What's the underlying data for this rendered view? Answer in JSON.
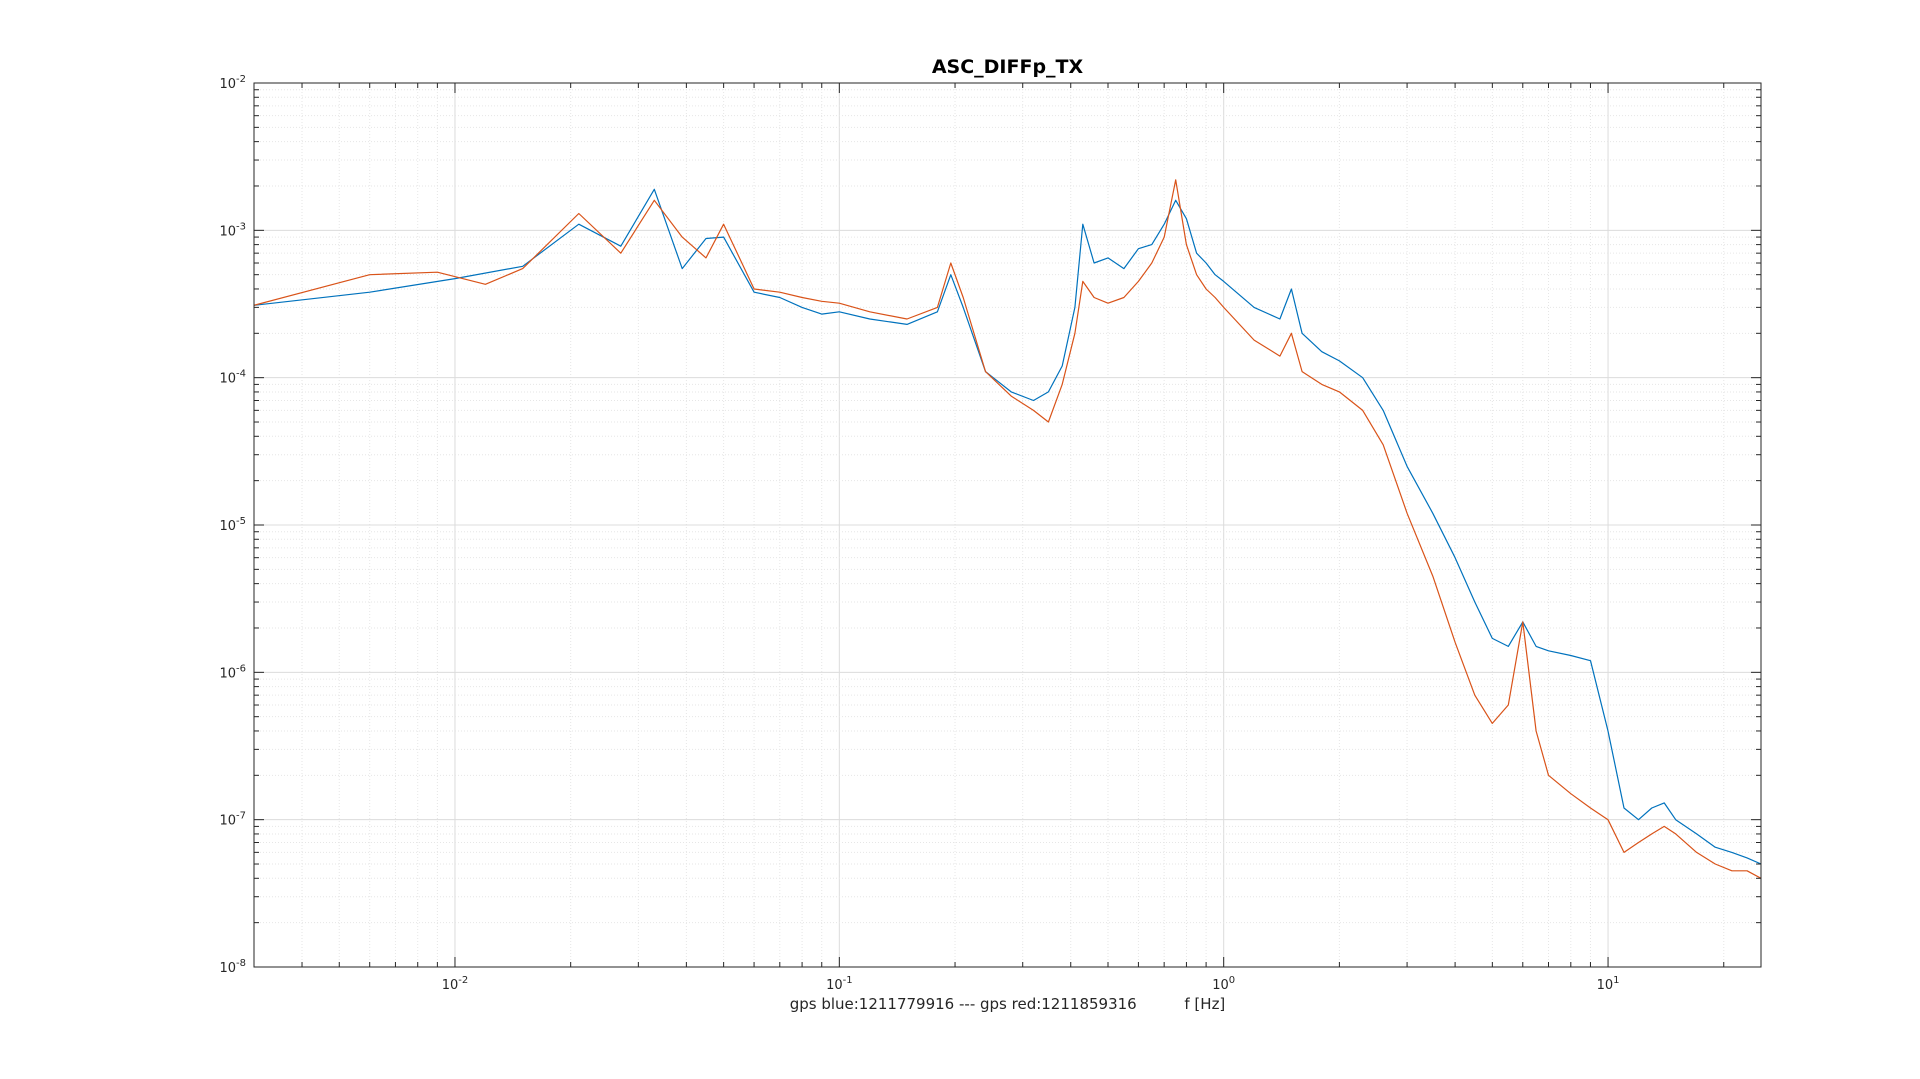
{
  "chart_data": {
    "type": "line",
    "title": "ASC_DIFFp_TX",
    "xlabel": "gps blue:1211779916 --- gps red:1211859316          f [Hz]",
    "ylabel": "",
    "xscale": "log",
    "yscale": "log",
    "xlim": [
      0.003,
      25
    ],
    "ylim": [
      1e-08,
      0.01
    ],
    "grid": true,
    "minor_grid": true,
    "x_ticks": [
      {
        "value": 0.01,
        "base": "10",
        "exp": "-2"
      },
      {
        "value": 0.1,
        "base": "10",
        "exp": "-1"
      },
      {
        "value": 1,
        "base": "10",
        "exp": "0"
      },
      {
        "value": 10,
        "base": "10",
        "exp": "1"
      }
    ],
    "y_ticks": [
      {
        "value": 1e-08,
        "base": "10",
        "exp": "-8"
      },
      {
        "value": 1e-07,
        "base": "10",
        "exp": "-7"
      },
      {
        "value": 1e-06,
        "base": "10",
        "exp": "-6"
      },
      {
        "value": 1e-05,
        "base": "10",
        "exp": "-5"
      },
      {
        "value": 0.0001,
        "base": "10",
        "exp": "-4"
      },
      {
        "value": 0.001,
        "base": "10",
        "exp": "-3"
      },
      {
        "value": 0.01,
        "base": "10",
        "exp": "-2"
      }
    ],
    "series": [
      {
        "color": "#0072BD",
        "x": [
          0.003,
          0.006,
          0.01,
          0.015,
          0.021,
          0.027,
          0.033,
          0.039,
          0.045,
          0.05,
          0.06,
          0.07,
          0.08,
          0.09,
          0.1,
          0.12,
          0.15,
          0.18,
          0.195,
          0.21,
          0.24,
          0.28,
          0.32,
          0.35,
          0.38,
          0.41,
          0.43,
          0.46,
          0.5,
          0.55,
          0.6,
          0.65,
          0.7,
          0.75,
          0.8,
          0.85,
          0.9,
          0.95,
          1.0,
          1.2,
          1.4,
          1.5,
          1.6,
          1.8,
          2.0,
          2.3,
          2.6,
          3.0,
          3.5,
          4.0,
          4.5,
          5.0,
          5.5,
          6.0,
          6.5,
          7.0,
          8.0,
          9.0,
          10.0,
          11.0,
          12.0,
          13.0,
          14.0,
          15.0,
          17.0,
          19.0,
          21.0,
          23.0,
          25.0
        ],
        "y": [
          0.00031,
          0.00038,
          0.00047,
          0.00057,
          0.0011,
          0.00078,
          0.0019,
          0.00055,
          0.00088,
          0.0009,
          0.00038,
          0.00035,
          0.0003,
          0.00027,
          0.00028,
          0.00025,
          0.00023,
          0.00028,
          0.0005,
          0.0003,
          0.00011,
          8e-05,
          7e-05,
          8e-05,
          0.00012,
          0.0003,
          0.0011,
          0.0006,
          0.00065,
          0.00055,
          0.00075,
          0.0008,
          0.0011,
          0.0016,
          0.0012,
          0.0007,
          0.0006,
          0.0005,
          0.00045,
          0.0003,
          0.00025,
          0.0004,
          0.0002,
          0.00015,
          0.00013,
          0.0001,
          6e-05,
          2.5e-05,
          1.2e-05,
          6e-06,
          3e-06,
          1.7e-06,
          1.5e-06,
          2.2e-06,
          1.5e-06,
          1.4e-06,
          1.3e-06,
          1.2e-06,
          4e-07,
          1.2e-07,
          1e-07,
          1.2e-07,
          1.3e-07,
          1e-07,
          8e-08,
          6.5e-08,
          6e-08,
          5.5e-08,
          5e-08
        ]
      },
      {
        "color": "#D95319",
        "x": [
          0.003,
          0.006,
          0.009,
          0.012,
          0.015,
          0.021,
          0.027,
          0.033,
          0.039,
          0.045,
          0.05,
          0.06,
          0.07,
          0.08,
          0.09,
          0.1,
          0.12,
          0.15,
          0.18,
          0.195,
          0.21,
          0.24,
          0.28,
          0.32,
          0.35,
          0.38,
          0.41,
          0.43,
          0.46,
          0.5,
          0.55,
          0.6,
          0.65,
          0.7,
          0.75,
          0.8,
          0.85,
          0.9,
          0.95,
          1.0,
          1.2,
          1.4,
          1.5,
          1.6,
          1.8,
          2.0,
          2.3,
          2.6,
          3.0,
          3.5,
          4.0,
          4.5,
          5.0,
          5.5,
          6.0,
          6.5,
          7.0,
          8.0,
          9.0,
          10.0,
          11.0,
          12.0,
          13.0,
          14.0,
          15.0,
          17.0,
          19.0,
          21.0,
          23.0,
          25.0
        ],
        "y": [
          0.00031,
          0.0005,
          0.00052,
          0.00043,
          0.00055,
          0.0013,
          0.0007,
          0.0016,
          0.0009,
          0.00065,
          0.0011,
          0.0004,
          0.00038,
          0.00035,
          0.00033,
          0.00032,
          0.00028,
          0.00025,
          0.0003,
          0.0006,
          0.00035,
          0.00011,
          7.5e-05,
          6e-05,
          5e-05,
          9e-05,
          0.0002,
          0.00045,
          0.00035,
          0.00032,
          0.00035,
          0.00045,
          0.0006,
          0.0009,
          0.0022,
          0.0008,
          0.0005,
          0.0004,
          0.00035,
          0.0003,
          0.00018,
          0.00014,
          0.0002,
          0.00011,
          9e-05,
          8e-05,
          6e-05,
          3.5e-05,
          1.2e-05,
          4.5e-06,
          1.6e-06,
          7e-07,
          4.5e-07,
          6e-07,
          2.2e-06,
          4e-07,
          2e-07,
          1.5e-07,
          1.2e-07,
          1e-07,
          6e-08,
          7e-08,
          8e-08,
          9e-08,
          8e-08,
          6e-08,
          5e-08,
          4.5e-08,
          4.5e-08,
          4e-08
        ]
      }
    ]
  }
}
